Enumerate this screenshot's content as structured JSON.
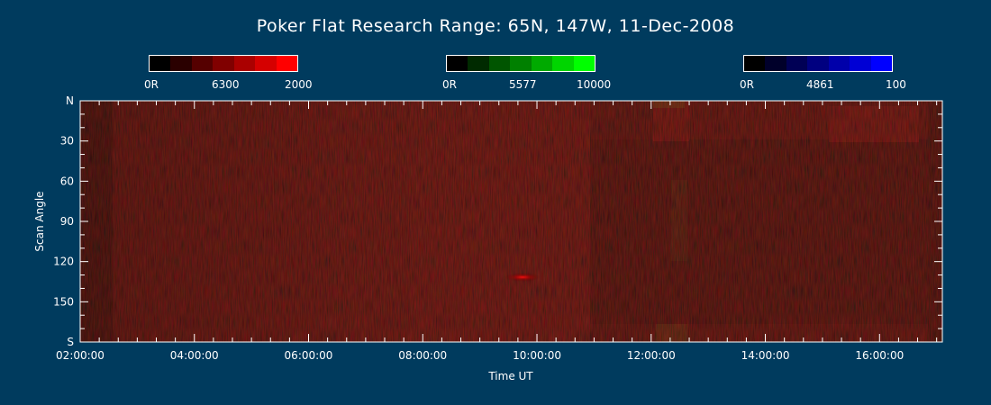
{
  "chart_data": {
    "type": "heatmap",
    "title": "Poker Flat Research Range: 65N, 147W, 11-Dec-2008",
    "xlabel": "Time UT",
    "ylabel": "Scan Angle",
    "x_ticks": [
      "02:00:00",
      "04:00:00",
      "06:00:00",
      "08:00:00",
      "10:00:00",
      "12:00:00",
      "14:00:00",
      "16:00:00"
    ],
    "y_ticks": [
      "N",
      "30",
      "60",
      "90",
      "120",
      "150",
      "S"
    ],
    "y_tick_values": [
      0,
      30,
      60,
      90,
      120,
      150,
      180
    ],
    "xlim_hours": [
      2.0,
      17.1
    ],
    "ylim": [
      0,
      180
    ],
    "colorbars": [
      {
        "channel": "red",
        "labels": [
          "0R",
          "6300",
          "2000"
        ],
        "colors": [
          "#000000",
          "#2a0000",
          "#550000",
          "#800000",
          "#aa0000",
          "#d50000",
          "#ff0000"
        ]
      },
      {
        "channel": "green",
        "labels": [
          "0R",
          "5577",
          "10000"
        ],
        "colors": [
          "#000000",
          "#002a00",
          "#005500",
          "#008000",
          "#00aa00",
          "#00d500",
          "#00ff00"
        ]
      },
      {
        "channel": "blue",
        "labels": [
          "0R",
          "4861",
          "100"
        ],
        "colors": [
          "#000000",
          "#00002a",
          "#000055",
          "#000080",
          "#0000aa",
          "#0000d5",
          "#0000ff"
        ]
      }
    ]
  }
}
